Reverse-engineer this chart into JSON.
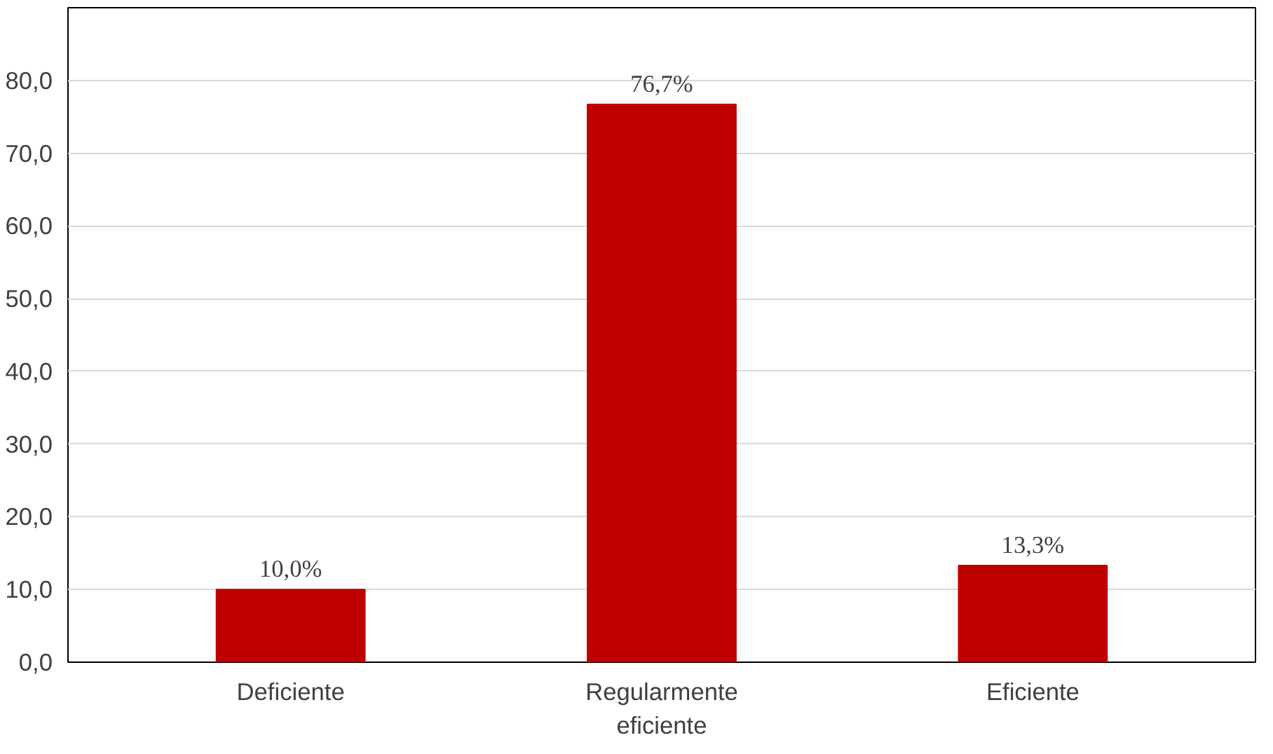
{
  "chart_data": {
    "type": "bar",
    "categories": [
      "Deficiente",
      "Regularmente\neficiente",
      "Eficiente"
    ],
    "values": [
      10.0,
      76.7,
      13.3
    ],
    "value_labels": [
      "10,0%",
      "76,7%",
      "13,3%"
    ],
    "color": "#c00000",
    "ylim": [
      0,
      90
    ],
    "yticks": [
      {
        "value": 0,
        "label": "0,0"
      },
      {
        "value": 10,
        "label": "10,0"
      },
      {
        "value": 20,
        "label": "20,0"
      },
      {
        "value": 30,
        "label": "30,0"
      },
      {
        "value": 40,
        "label": "40,0"
      },
      {
        "value": 50,
        "label": "50,0"
      },
      {
        "value": 60,
        "label": "60,0"
      },
      {
        "value": 70,
        "label": "70,0"
      },
      {
        "value": 80,
        "label": "80,0"
      },
      {
        "value": 90,
        "label": null
      }
    ],
    "grid": "y"
  }
}
